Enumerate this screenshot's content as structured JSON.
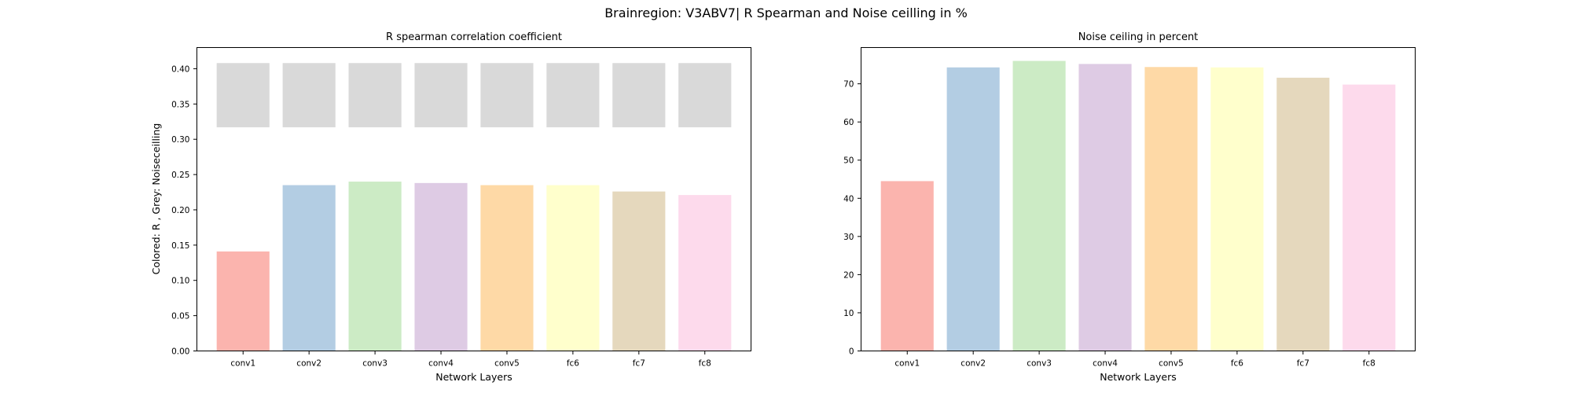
{
  "figure": {
    "suptitle": "Brainregion: V3ABV7| R Spearman and Noise ceilling in %"
  },
  "chart_data": [
    {
      "type": "bar",
      "title": "R spearman correlation coefficient",
      "xlabel": "Network Layers",
      "ylabel": "Colored: R , Grey: Noiseceilling",
      "categories": [
        "conv1",
        "conv2",
        "conv3",
        "conv4",
        "conv5",
        "fc6",
        "fc7",
        "fc8"
      ],
      "ylim": [
        0,
        0.43
      ],
      "yticks": [
        0.0,
        0.05,
        0.1,
        0.15,
        0.2,
        0.25,
        0.3,
        0.35,
        0.4
      ],
      "ytick_labels": [
        "0.00",
        "0.05",
        "0.10",
        "0.15",
        "0.20",
        "0.25",
        "0.30",
        "0.35",
        "0.40"
      ],
      "series": [
        {
          "values": [
            0.141,
            0.235,
            0.24,
            0.238,
            0.235,
            0.235,
            0.226,
            0.221
          ],
          "colors": [
            "#fbb4ae",
            "#b3cde3",
            "#ccebc5",
            "#decbe4",
            "#fed9a6",
            "#ffffcc",
            "#e5d8bd",
            "#fddaec"
          ]
        },
        {
          "type": "floating_bar",
          "lower": [
            0.317,
            0.317,
            0.317,
            0.317,
            0.317,
            0.317,
            0.317,
            0.317
          ],
          "upper": [
            0.408,
            0.408,
            0.408,
            0.408,
            0.408,
            0.408,
            0.408,
            0.408
          ],
          "color": "#d9d9d9"
        }
      ],
      "grid": false
    },
    {
      "type": "bar",
      "title": "Noise ceiling in percent",
      "xlabel": "Network Layers",
      "ylabel": "",
      "categories": [
        "conv1",
        "conv2",
        "conv3",
        "conv4",
        "conv5",
        "fc6",
        "fc7",
        "fc8"
      ],
      "ylim": [
        0,
        79.5
      ],
      "yticks": [
        0,
        10,
        20,
        30,
        40,
        50,
        60,
        70
      ],
      "ytick_labels": [
        "0",
        "10",
        "20",
        "30",
        "40",
        "50",
        "60",
        "70"
      ],
      "series": [
        {
          "values": [
            44.5,
            74.3,
            76.0,
            75.2,
            74.4,
            74.3,
            71.6,
            69.8
          ],
          "colors": [
            "#fbb4ae",
            "#b3cde3",
            "#ccebc5",
            "#decbe4",
            "#fed9a6",
            "#ffffcc",
            "#e5d8bd",
            "#fddaec"
          ]
        }
      ],
      "grid": false
    }
  ]
}
